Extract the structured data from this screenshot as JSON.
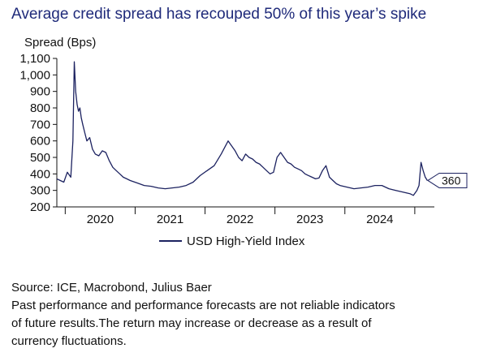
{
  "chart_data": {
    "type": "line",
    "title": "Average credit spread has recouped 50% of this year’s spike",
    "ylabel": "Spread (Bps)",
    "xlabel": "",
    "ylim": [
      200,
      1100
    ],
    "yticks": [
      "1,100",
      "1,000",
      "900",
      "800",
      "700",
      "600",
      "500",
      "400",
      "300",
      "200"
    ],
    "ytick_values": [
      1100,
      1000,
      900,
      800,
      700,
      600,
      500,
      400,
      300,
      200
    ],
    "xticks": [
      "2020",
      "2021",
      "2022",
      "2023",
      "2024"
    ],
    "xtick_values": [
      2020.0,
      2021.0,
      2022.0,
      2023.0,
      2024.0
    ],
    "xlim": [
      2019.45,
      2024.85
    ],
    "legend": "bottom",
    "end_label": "360",
    "series": [
      {
        "name": "USD High-Yield Index",
        "color": "#1c2260",
        "x": [
          2019.45,
          2019.5,
          2019.55,
          2019.6,
          2019.65,
          2019.68,
          2019.7,
          2019.72,
          2019.74,
          2019.76,
          2019.78,
          2019.8,
          2019.82,
          2019.85,
          2019.88,
          2019.92,
          2019.96,
          2020.0,
          2020.05,
          2020.1,
          2020.15,
          2020.2,
          2020.25,
          2020.3,
          2020.35,
          2020.4,
          2020.45,
          2020.5,
          2020.6,
          2020.7,
          2020.8,
          2020.9,
          2021.0,
          2021.1,
          2021.2,
          2021.3,
          2021.4,
          2021.5,
          2021.6,
          2021.7,
          2021.8,
          2021.9,
          2022.0,
          2022.05,
          2022.1,
          2022.15,
          2022.2,
          2022.25,
          2022.3,
          2022.35,
          2022.4,
          2022.45,
          2022.5,
          2022.55,
          2022.6,
          2022.65,
          2022.7,
          2022.75,
          2022.8,
          2022.85,
          2022.9,
          2022.95,
          2023.0,
          2023.05,
          2023.1,
          2023.15,
          2023.2,
          2023.25,
          2023.3,
          2023.35,
          2023.4,
          2023.45,
          2023.5,
          2023.6,
          2023.7,
          2023.8,
          2023.9,
          2024.0,
          2024.1,
          2024.2,
          2024.3,
          2024.4,
          2024.5,
          2024.55,
          2024.6,
          2024.63,
          2024.66,
          2024.69,
          2024.72,
          2024.75
        ],
        "y": [
          370,
          360,
          350,
          410,
          380,
          600,
          1080,
          900,
          820,
          780,
          800,
          740,
          700,
          650,
          600,
          620,
          550,
          520,
          510,
          540,
          530,
          480,
          440,
          420,
          400,
          380,
          370,
          360,
          345,
          330,
          325,
          315,
          310,
          315,
          320,
          330,
          350,
          390,
          420,
          450,
          520,
          600,
          540,
          500,
          480,
          520,
          500,
          490,
          470,
          460,
          440,
          420,
          400,
          410,
          500,
          530,
          500,
          470,
          460,
          440,
          430,
          420,
          400,
          390,
          380,
          370,
          375,
          420,
          450,
          380,
          360,
          340,
          330,
          320,
          310,
          315,
          320,
          330,
          330,
          310,
          300,
          290,
          280,
          270,
          300,
          330,
          470,
          420,
          380,
          360
        ]
      }
    ]
  },
  "source": {
    "line1": "Source: ICE, Macrobond, Julius Baer",
    "line2": "Past performance and performance forecasts are not reliable indicators",
    "line3": "of future results.The return may increase or decrease as a result of",
    "line4": "currency fluctuations."
  }
}
